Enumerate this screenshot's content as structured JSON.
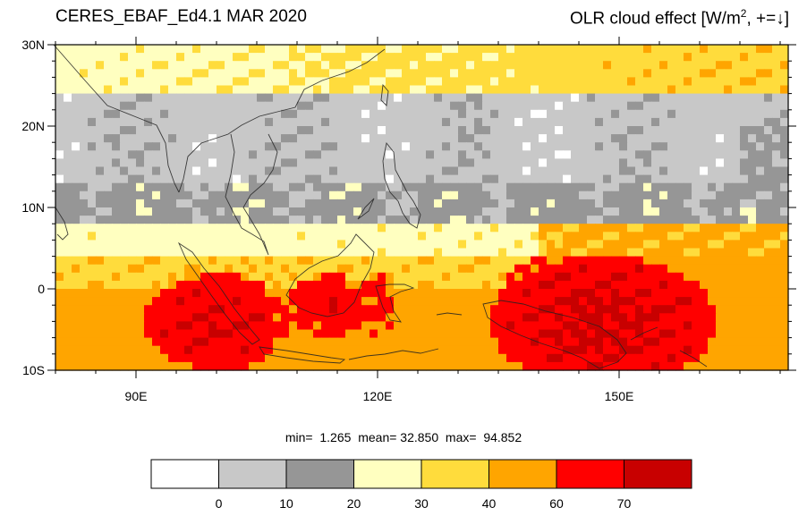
{
  "header": {
    "left_title": "CERES_EBAF_Ed4.1 MAR 2020",
    "right_title_main": "OLR cloud effect [W/m",
    "right_title_sup": "2",
    "right_title_tail": ", +=",
    "right_title_arrow": "↓",
    "right_title_bracket": "]"
  },
  "map": {
    "lon_range": [
      80,
      171
    ],
    "lat_range": [
      -10,
      30
    ],
    "lat_ticks": [
      {
        "value": 30,
        "label": "30N"
      },
      {
        "value": 20,
        "label": "20N"
      },
      {
        "value": 10,
        "label": "10N"
      },
      {
        "value": 0,
        "label": "0"
      },
      {
        "value": -10,
        "label": "10S"
      }
    ],
    "lon_ticks": [
      {
        "value": 90,
        "label": "90E"
      },
      {
        "value": 120,
        "label": "120E"
      },
      {
        "value": 150,
        "label": "150E"
      }
    ]
  },
  "stats": {
    "min_label": "min=",
    "min_value": "1.265",
    "mean_label": "mean=",
    "mean_value": "32.850",
    "max_label": "max=",
    "max_value": "94.852"
  },
  "colorbar": {
    "bins": [
      {
        "color": "#ffffff"
      },
      {
        "color": "#c8c8c8"
      },
      {
        "color": "#969696"
      },
      {
        "color": "#ffffc0"
      },
      {
        "color": "#ffdc3c"
      },
      {
        "color": "#ffa500"
      },
      {
        "color": "#ff0000"
      },
      {
        "color": "#c80000"
      }
    ],
    "labels": [
      "0",
      "10",
      "20",
      "30",
      "40",
      "60",
      "70"
    ]
  }
}
